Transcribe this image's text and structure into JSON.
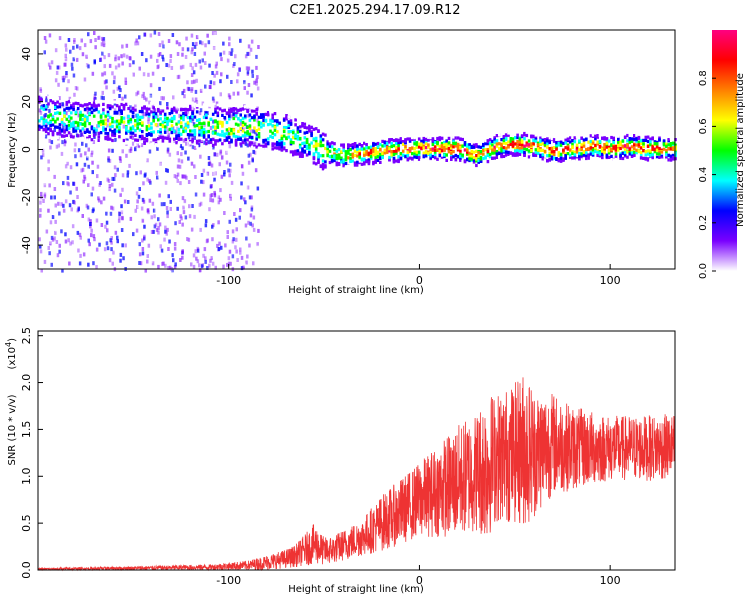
{
  "figure_title": "C2E1.2025.294.17.09.R12",
  "chart_data": [
    {
      "type": "heatmap",
      "title": "C2E1.2025.294.17.09.R12",
      "xlabel": "Height of straight line (km)",
      "ylabel": "Frequency (Hz)",
      "xlim": [
        -200,
        134
      ],
      "ylim": [
        -50,
        50
      ],
      "xticks": [
        -100,
        0,
        100
      ],
      "xtick_labels": [
        "-100",
        "0",
        "100"
      ],
      "yticks": [
        -40,
        -20,
        0,
        20,
        40
      ],
      "ytick_labels": [
        "-40",
        "-20",
        "0",
        "20",
        "40"
      ],
      "colorbar": {
        "label": "Normalized spectral amplitude",
        "range": [
          0,
          1
        ],
        "ticks": [
          0.0,
          0.2,
          0.4,
          0.6,
          0.8
        ],
        "tick_labels": [
          "0.0",
          "0.2",
          "0.4",
          "0.6",
          "0.8"
        ],
        "colors": [
          "#ffffff",
          "#7a00ff",
          "#0000ff",
          "#00ffff",
          "#00ff00",
          "#ffff00",
          "#ff8000",
          "#ff0000",
          "#ff0080"
        ]
      },
      "ridge": {
        "x": [
          -200,
          -180,
          -160,
          -140,
          -120,
          -100,
          -90,
          -80,
          -70,
          -60,
          -50,
          -40,
          -20,
          0,
          20,
          30,
          40,
          50,
          60,
          70,
          80,
          90,
          100,
          110,
          120,
          134
        ],
        "y": [
          15,
          13,
          12,
          11,
          11,
          10,
          10,
          9,
          7,
          4,
          0,
          -2,
          0,
          1,
          1,
          -2,
          2,
          3,
          2,
          0,
          1,
          2,
          1,
          2,
          1,
          1
        ],
        "peak_amplitude": [
          0.5,
          0.5,
          0.5,
          0.5,
          0.5,
          0.6,
          0.6,
          0.55,
          0.5,
          0.45,
          0.6,
          0.7,
          0.8,
          0.85,
          0.85,
          0.7,
          0.8,
          0.8,
          0.8,
          0.8,
          0.85,
          0.85,
          0.8,
          0.85,
          0.8,
          0.75
        ]
      },
      "scatter_noise_region_km": [
        -200,
        -85
      ]
    },
    {
      "type": "line",
      "xlabel": "Height of straight line (km)",
      "ylabel": "SNR (10 * v/v)",
      "y_exponent_label": "(x10",
      "y_exponent_power": "4",
      "y_exponent_close": ")",
      "xlim": [
        -200,
        134
      ],
      "ylim": [
        0,
        2.55
      ],
      "xticks": [
        -100,
        0,
        100
      ],
      "xtick_labels": [
        "-100",
        "0",
        "100"
      ],
      "yticks": [
        0.0,
        0.5,
        1.0,
        1.5,
        2.0,
        2.5
      ],
      "ytick_labels": [
        "0.0",
        "0.5",
        "1.0",
        "1.5",
        "2.0",
        "2.5"
      ],
      "series": [
        {
          "name": "SNR",
          "color": "#ee3333",
          "envelope_x": [
            -200,
            -150,
            -110,
            -90,
            -80,
            -70,
            -65,
            -55,
            -50,
            -45,
            -30,
            -20,
            -10,
            0,
            10,
            20,
            30,
            35,
            40,
            50,
            55,
            60,
            70,
            80,
            100,
            120,
            134
          ],
          "envelope_mean": [
            0.01,
            0.02,
            0.03,
            0.05,
            0.08,
            0.12,
            0.15,
            0.28,
            0.2,
            0.22,
            0.35,
            0.5,
            0.62,
            0.75,
            0.85,
            0.95,
            1.05,
            1.1,
            1.2,
            1.25,
            1.3,
            1.25,
            1.35,
            1.3,
            1.3,
            1.3,
            1.32
          ],
          "envelope_amp": [
            0.01,
            0.02,
            0.03,
            0.05,
            0.08,
            0.1,
            0.12,
            0.22,
            0.15,
            0.15,
            0.2,
            0.3,
            0.35,
            0.4,
            0.5,
            0.6,
            0.65,
            0.8,
            0.7,
            0.75,
            0.85,
            0.7,
            0.55,
            0.45,
            0.35,
            0.35,
            0.35
          ]
        }
      ]
    }
  ]
}
